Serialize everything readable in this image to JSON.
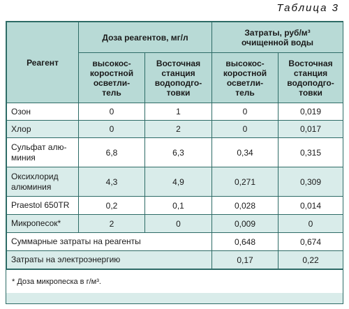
{
  "caption": "Таблица 3",
  "header": {
    "reagent": "Реагент",
    "dose_group": "Доза реагентов, мг/л",
    "cost_group_line1": "Затраты, руб/м³",
    "cost_group_line2": "очищенной воды",
    "sub": {
      "hs_clarifier": [
        "высокос-",
        "коростной",
        "осветли-",
        "тель"
      ],
      "east_station": [
        "Восточная",
        "станция",
        "водоподго-",
        "товки"
      ]
    }
  },
  "rows": [
    {
      "name": "Озон",
      "dose_hs": "0",
      "dose_east": "1",
      "cost_hs": "0",
      "cost_east": "0,019"
    },
    {
      "name": "Хлор",
      "dose_hs": "0",
      "dose_east": "2",
      "cost_hs": "0",
      "cost_east": "0,017"
    },
    {
      "name": "Сульфат алю-\nминия",
      "dose_hs": "6,8",
      "dose_east": "6,3",
      "cost_hs": "0,34",
      "cost_east": "0,315"
    },
    {
      "name": "Оксихлорид\nалюминия",
      "dose_hs": "4,3",
      "dose_east": "4,9",
      "cost_hs": "0,271",
      "cost_east": "0,309"
    },
    {
      "name": "Praestol 650TR",
      "dose_hs": "0,2",
      "dose_east": "0,1",
      "cost_hs": "0,028",
      "cost_east": "0,014"
    },
    {
      "name": "Микропесок*",
      "dose_hs": "2",
      "dose_east": "0",
      "cost_hs": "0,009",
      "cost_east": "0"
    }
  ],
  "totals": [
    {
      "label": "Суммарные затраты на реагенты",
      "cost_hs": "0,648",
      "cost_east": "0,674"
    },
    {
      "label": "Затраты на электроэнергию",
      "cost_hs": "0,17",
      "cost_east": "0,22"
    }
  ],
  "footnote": "* Доза микропеска в г/м³."
}
